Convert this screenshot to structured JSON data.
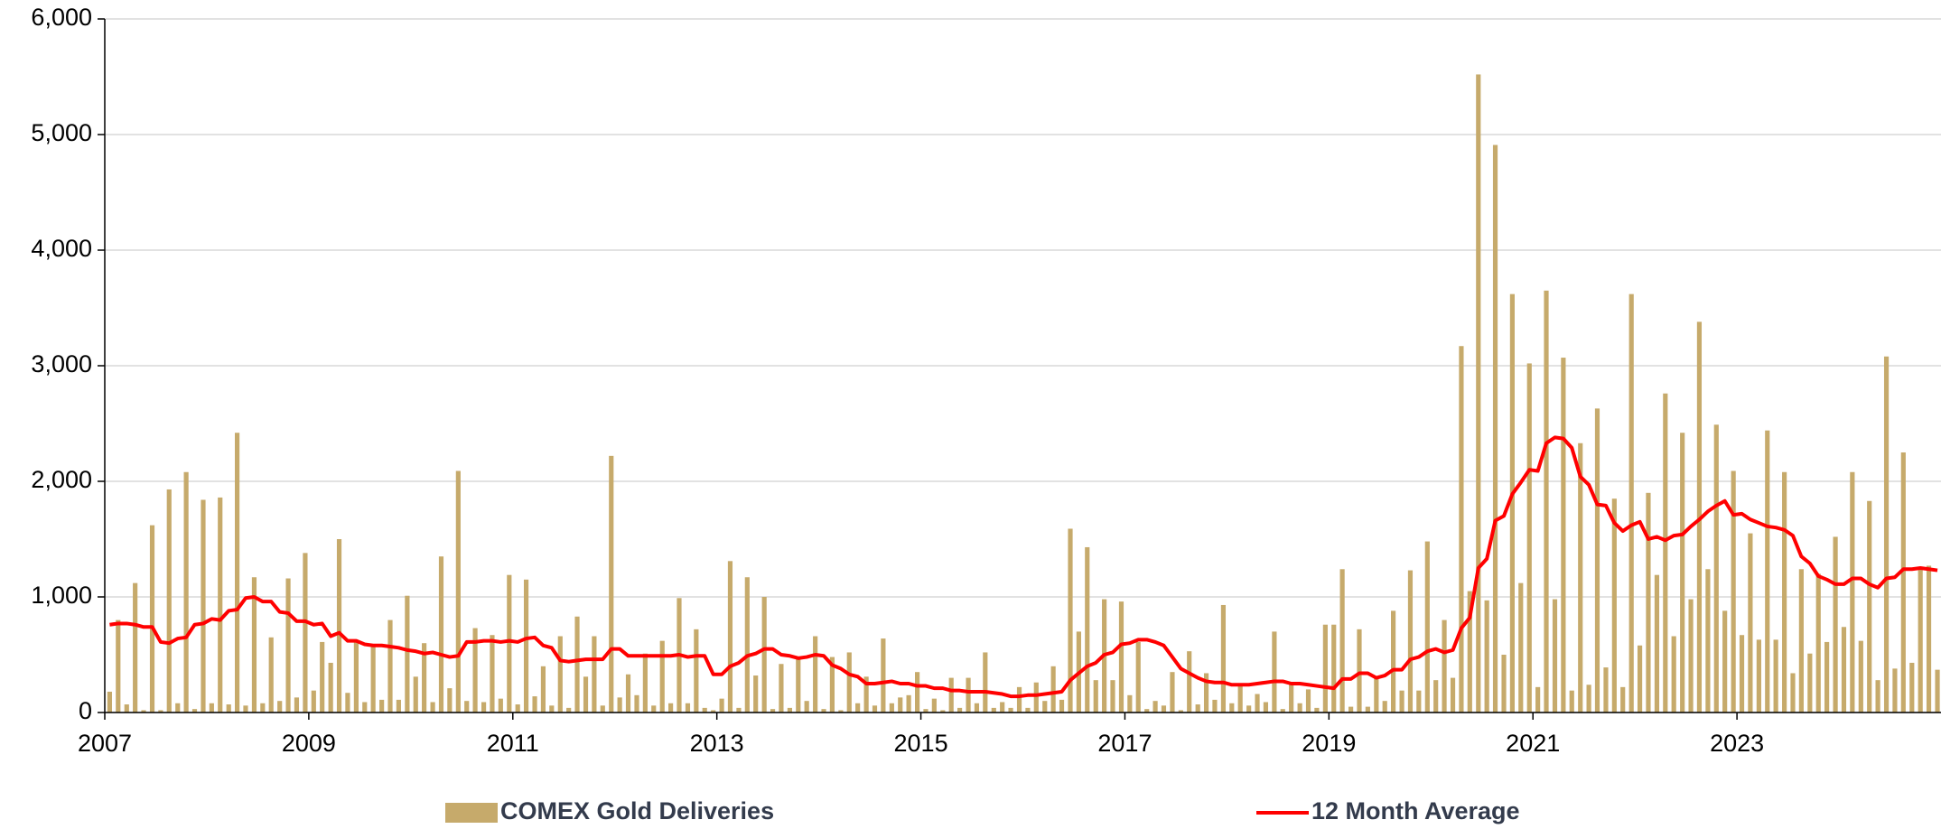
{
  "chart_data": {
    "type": "bar_line",
    "x": [
      2007,
      2007.083,
      2007.167,
      2007.25,
      2007.333,
      2007.417,
      2007.5,
      2007.583,
      2007.667,
      2007.75,
      2007.833,
      2007.917,
      2008,
      2008.083,
      2008.167,
      2008.25,
      2008.333,
      2008.417,
      2008.5,
      2008.583,
      2008.667,
      2008.75,
      2008.833,
      2008.917,
      2009,
      2009.083,
      2009.167,
      2009.25,
      2009.333,
      2009.417,
      2009.5,
      2009.583,
      2009.667,
      2009.75,
      2009.833,
      2009.917,
      2010,
      2010.083,
      2010.167,
      2010.25,
      2010.333,
      2010.417,
      2010.5,
      2010.583,
      2010.667,
      2010.75,
      2010.833,
      2010.917,
      2011,
      2011.083,
      2011.167,
      2011.25,
      2011.333,
      2011.417,
      2011.5,
      2011.583,
      2011.667,
      2011.75,
      2011.833,
      2011.917,
      2012,
      2012.083,
      2012.167,
      2012.25,
      2012.333,
      2012.417,
      2012.5,
      2012.583,
      2012.667,
      2012.75,
      2012.833,
      2012.917,
      2013,
      2013.083,
      2013.167,
      2013.25,
      2013.333,
      2013.417,
      2013.5,
      2013.583,
      2013.667,
      2013.75,
      2013.833,
      2013.917,
      2014,
      2014.083,
      2014.167,
      2014.25,
      2014.333,
      2014.417,
      2014.5,
      2014.583,
      2014.667,
      2014.75,
      2014.833,
      2014.917,
      2015,
      2015.083,
      2015.167,
      2015.25,
      2015.333,
      2015.417,
      2015.5,
      2015.583,
      2015.667,
      2015.75,
      2015.833,
      2015.917,
      2016,
      2016.083,
      2016.167,
      2016.25,
      2016.333,
      2016.417,
      2016.5,
      2016.583,
      2016.667,
      2016.75,
      2016.833,
      2016.917,
      2017,
      2017.083,
      2017.167,
      2017.25,
      2017.333,
      2017.417,
      2017.5,
      2017.583,
      2017.667,
      2017.75,
      2017.833,
      2017.917,
      2018,
      2018.083,
      2018.167,
      2018.25,
      2018.333,
      2018.417,
      2018.5,
      2018.583,
      2018.667,
      2018.75,
      2018.833,
      2018.917,
      2019,
      2019.083,
      2019.167,
      2019.25,
      2019.333,
      2019.417,
      2019.5,
      2019.583,
      2019.667,
      2019.75,
      2019.833,
      2019.917,
      2020,
      2020.083,
      2020.167,
      2020.25,
      2020.333,
      2020.417,
      2020.5,
      2020.583,
      2020.667,
      2020.75,
      2020.833,
      2020.917,
      2021,
      2021.083,
      2021.167,
      2021.25,
      2021.333,
      2021.417,
      2021.5,
      2021.583,
      2021.667,
      2021.75,
      2021.833,
      2021.917,
      2022,
      2022.083,
      2022.167,
      2022.25,
      2022.333,
      2022.417,
      2022.5,
      2022.583,
      2022.667,
      2022.75,
      2022.833,
      2022.917,
      2023,
      2023.083,
      2023.167,
      2023.25,
      2023.333,
      2023.417,
      2023.5,
      2023.583,
      2023.667,
      2023.75,
      2023.833,
      2023.917,
      2024,
      2024.083,
      2024.167,
      2024.25,
      2024.333,
      2024.417,
      2024.5,
      2024.583,
      2024.667,
      2024.75,
      2024.833,
      2024.917
    ],
    "series": [
      {
        "name": "COMEX Gold Deliveries",
        "type": "bar",
        "color": "#c6aa6b",
        "values": [
          180,
          800,
          70,
          1120,
          20,
          1620,
          20,
          1930,
          80,
          2080,
          30,
          1840,
          80,
          1860,
          70,
          2420,
          60,
          1170,
          80,
          650,
          100,
          1160,
          130,
          1380,
          190,
          610,
          430,
          1500,
          170,
          620,
          90,
          570,
          110,
          800,
          110,
          1010,
          310,
          600,
          90,
          1350,
          210,
          2090,
          100,
          730,
          90,
          670,
          120,
          1190,
          70,
          1150,
          140,
          400,
          60,
          660,
          40,
          830,
          310,
          660,
          60,
          2220,
          130,
          330,
          150,
          510,
          60,
          620,
          80,
          990,
          80,
          720,
          40,
          20,
          120,
          1310,
          40,
          1170,
          320,
          1000,
          30,
          420,
          40,
          470,
          100,
          660,
          30,
          480,
          20,
          520,
          80,
          310,
          60,
          640,
          80,
          130,
          150,
          350,
          30,
          120,
          20,
          300,
          40,
          300,
          80,
          520,
          40,
          90,
          40,
          220,
          40,
          260,
          100,
          400,
          110,
          1590,
          700,
          1430,
          280,
          980,
          280,
          960,
          150,
          610,
          30,
          100,
          60,
          350,
          20,
          530,
          70,
          340,
          110,
          930,
          80,
          250,
          60,
          160,
          90,
          700,
          30,
          260,
          80,
          200,
          40,
          760,
          760,
          1240,
          50,
          720,
          50,
          310,
          100,
          880,
          190,
          1230,
          190,
          1480,
          280,
          800,
          300,
          3170,
          1050,
          5520,
          970,
          4910,
          500,
          3620,
          1120,
          3020,
          220,
          3650,
          980,
          3070,
          190,
          2330,
          240,
          2630,
          390,
          1850,
          220,
          3620,
          580,
          1900,
          1190,
          2760,
          660,
          2420,
          980,
          3380,
          1240,
          2490,
          880,
          2090,
          670,
          1550,
          630,
          2440,
          630,
          2080,
          340,
          1240,
          510,
          1200,
          610,
          1520,
          740,
          2080,
          620,
          1830,
          280,
          3080,
          380,
          2250,
          430,
          1250,
          1270,
          370
        ]
      },
      {
        "name": "12 Month Average",
        "type": "line",
        "color": "#ff0000",
        "values": [
          760,
          770,
          770,
          760,
          740,
          740,
          610,
          600,
          640,
          650,
          760,
          770,
          810,
          800,
          880,
          890,
          990,
          1000,
          960,
          960,
          870,
          860,
          790,
          790,
          760,
          770,
          660,
          690,
          620,
          620,
          590,
          580,
          580,
          570,
          560,
          540,
          530,
          510,
          520,
          500,
          480,
          490,
          610,
          610,
          620,
          620,
          610,
          620,
          610,
          640,
          650,
          580,
          560,
          450,
          440,
          450,
          460,
          460,
          460,
          550,
          550,
          490,
          490,
          490,
          490,
          490,
          490,
          500,
          480,
          490,
          490,
          330,
          330,
          400,
          430,
          490,
          510,
          550,
          550,
          500,
          490,
          470,
          480,
          500,
          490,
          410,
          380,
          330,
          310,
          250,
          250,
          260,
          270,
          250,
          250,
          230,
          230,
          210,
          210,
          190,
          190,
          180,
          180,
          180,
          170,
          160,
          140,
          140,
          150,
          150,
          160,
          170,
          180,
          280,
          340,
          400,
          430,
          500,
          520,
          590,
          600,
          630,
          630,
          610,
          580,
          480,
          380,
          340,
          300,
          270,
          260,
          260,
          240,
          240,
          240,
          250,
          260,
          270,
          270,
          250,
          250,
          240,
          230,
          220,
          210,
          290,
          290,
          340,
          340,
          300,
          320,
          370,
          370,
          460,
          480,
          530,
          550,
          520,
          540,
          730,
          820,
          1250,
          1330,
          1660,
          1700,
          1890,
          1990,
          2100,
          2090,
          2330,
          2380,
          2370,
          2290,
          2040,
          1970,
          1800,
          1790,
          1640,
          1570,
          1620,
          1650,
          1500,
          1520,
          1490,
          1530,
          1540,
          1610,
          1670,
          1740,
          1790,
          1830,
          1710,
          1720,
          1670,
          1640,
          1610,
          1600,
          1580,
          1530,
          1350,
          1290,
          1180,
          1150,
          1110,
          1110,
          1160,
          1160,
          1110,
          1080,
          1160,
          1170,
          1240,
          1240,
          1250,
          1240,
          1230
        ]
      }
    ],
    "xlim": [
      2007,
      2025
    ],
    "xticks": [
      2007,
      2009,
      2011,
      2013,
      2015,
      2017,
      2019,
      2021,
      2023
    ],
    "ylim": [
      0,
      6000
    ],
    "yticks": [
      0,
      {
        "value": 1000,
        "label": "1,000"
      },
      {
        "value": 2000,
        "label": "2,000"
      },
      {
        "value": 3000,
        "label": "3,000"
      },
      {
        "value": 4000,
        "label": "4,000"
      },
      {
        "value": 5000,
        "label": "5,000"
      },
      {
        "value": 6000,
        "label": "6,000"
      }
    ],
    "grid": true
  }
}
